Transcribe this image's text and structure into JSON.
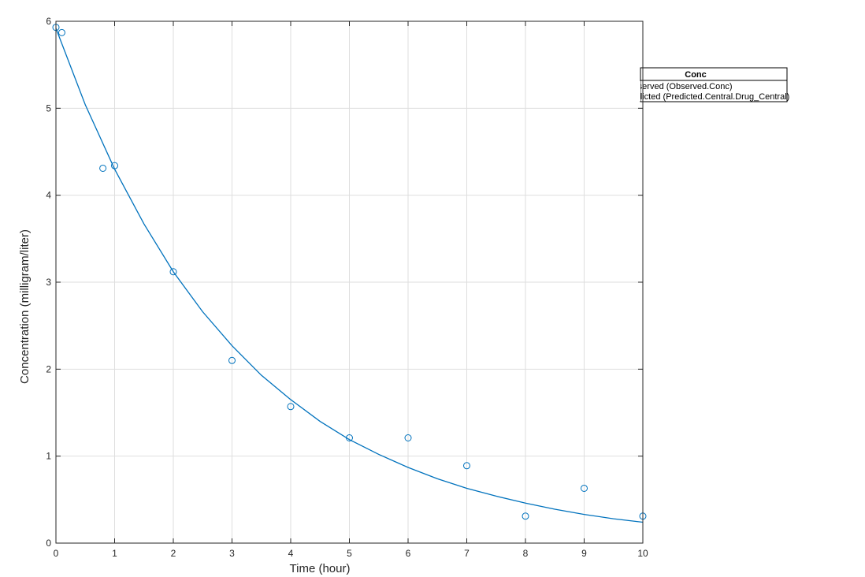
{
  "chart_data": {
    "type": "scatter",
    "title": "",
    "xlabel": "Time (hour)",
    "ylabel": "Concentration (milligram/liter)",
    "xlim": [
      0,
      10
    ],
    "ylim": [
      0,
      6
    ],
    "xticks": [
      0,
      1,
      2,
      3,
      4,
      5,
      6,
      7,
      8,
      9,
      10
    ],
    "yticks": [
      0,
      1,
      2,
      3,
      4,
      5,
      6
    ],
    "grid": true,
    "colors": {
      "series": "#0072BD",
      "grid": "#dedede",
      "axes": "#262626",
      "background": "#ffffff"
    },
    "legend": {
      "title": "Conc",
      "placement": "outside-right",
      "entries": [
        "Observed (Observed.Conc)",
        "Predicted (Predicted.Central.Drug_Central)"
      ]
    },
    "series": [
      {
        "name": "Observed (Observed.Conc)",
        "type": "scatter",
        "marker": "circle",
        "x": [
          0,
          0.1,
          0.8,
          1,
          2,
          3,
          4,
          5,
          6,
          7,
          8,
          9,
          10
        ],
        "y": [
          5.93,
          5.87,
          4.31,
          4.34,
          3.12,
          2.1,
          1.57,
          1.21,
          1.21,
          0.89,
          0.31,
          0.63,
          0.31
        ]
      },
      {
        "name": "Predicted (Predicted.Central.Drug_Central)",
        "type": "line",
        "x": [
          0,
          0.5,
          1,
          1.5,
          2,
          2.5,
          3,
          3.5,
          4,
          4.5,
          5,
          5.5,
          6,
          6.5,
          7,
          7.5,
          8,
          8.5,
          9,
          9.5,
          10
        ],
        "y": [
          5.92,
          5.04,
          4.3,
          3.67,
          3.12,
          2.66,
          2.27,
          1.93,
          1.65,
          1.4,
          1.19,
          1.02,
          0.87,
          0.74,
          0.63,
          0.54,
          0.46,
          0.39,
          0.33,
          0.28,
          0.24
        ]
      }
    ]
  }
}
